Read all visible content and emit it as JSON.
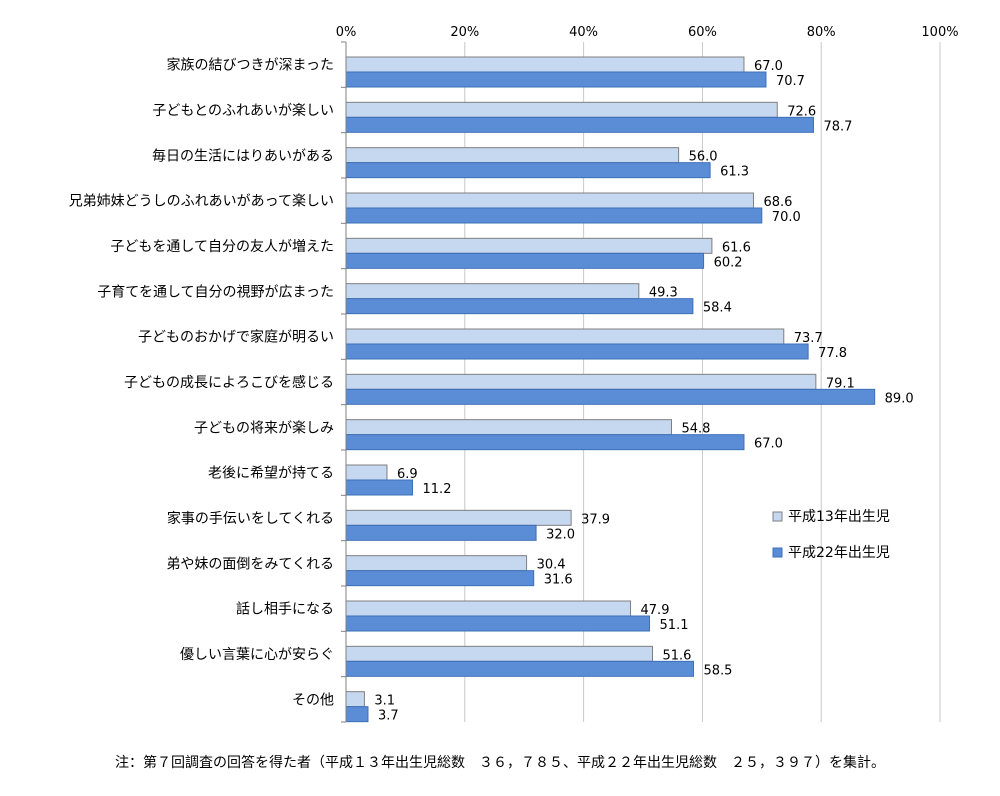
{
  "chart_data": {
    "type": "bar",
    "orientation": "horizontal",
    "xlim": [
      0,
      100
    ],
    "x_ticks": [
      "0%",
      "20%",
      "40%",
      "60%",
      "80%",
      "100%"
    ],
    "x_tick_values": [
      0,
      20,
      40,
      60,
      80,
      100
    ],
    "grid": true,
    "legend_position": "right",
    "categories": [
      "家族の結びつきが深まった",
      "子どもとのふれあいが楽しい",
      "毎日の生活にはりあいがある",
      "兄弟姉妹どうしのふれあいがあって楽しい",
      "子どもを通して自分の友人が増えた",
      "子育てを通して自分の視野が広まった",
      "子どものおかげで家庭が明るい",
      "子どもの成長によろこびを感じる",
      "子どもの将来が楽しみ",
      "老後に希望が持てる",
      "家事の手伝いをしてくれる",
      "弟や妹の面倒をみてくれる",
      "話し相手になる",
      "優しい言葉に心が安らぐ",
      "その他"
    ],
    "series": [
      {
        "name": "平成13年出生児",
        "color": "#c6d7f0",
        "border": "#7f7f7f",
        "values": [
          67.0,
          72.6,
          56.0,
          68.6,
          61.6,
          49.3,
          73.7,
          79.1,
          54.8,
          6.9,
          37.9,
          30.4,
          47.9,
          51.6,
          3.1
        ],
        "labels": [
          "67.0",
          "72.6",
          "56.0",
          "68.6",
          "61.6",
          "49.3",
          "73.7",
          "79.1",
          "54.8",
          "6.9",
          "37.9",
          "30.4",
          "47.9",
          "51.6",
          "3.1"
        ]
      },
      {
        "name": "平成22年出生児",
        "color": "#5b8dd6",
        "border": "#3e70ba",
        "values": [
          70.7,
          78.7,
          61.3,
          70.0,
          60.2,
          58.4,
          77.8,
          89.0,
          67.0,
          11.2,
          32.0,
          31.6,
          51.1,
          58.5,
          3.7
        ],
        "labels": [
          "70.7",
          "78.7",
          "61.3",
          "70.0",
          "60.2",
          "58.4",
          "77.8",
          "89.0",
          "67.0",
          "11.2",
          "32.0",
          "31.6",
          "51.1",
          "58.5",
          "3.7"
        ]
      }
    ]
  },
  "footnote": "注：第７回調査の回答を得た者（平成１３年出生児総数　３６，７８５、平成２２年出生児総数　２５，３９７）を集計。"
}
